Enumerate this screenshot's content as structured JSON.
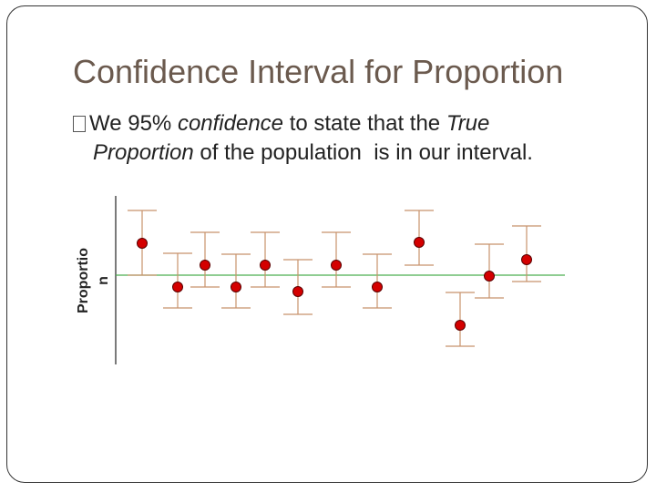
{
  "title": "Confidence Interval for Proportion",
  "bullet": {
    "parts": [
      "We 95% ",
      "confidence",
      " to state that the ",
      "True",
      "Proportion",
      " of the population  is in our interval."
    ]
  },
  "y_axis_label": [
    "Proportio",
    "n"
  ]
}
